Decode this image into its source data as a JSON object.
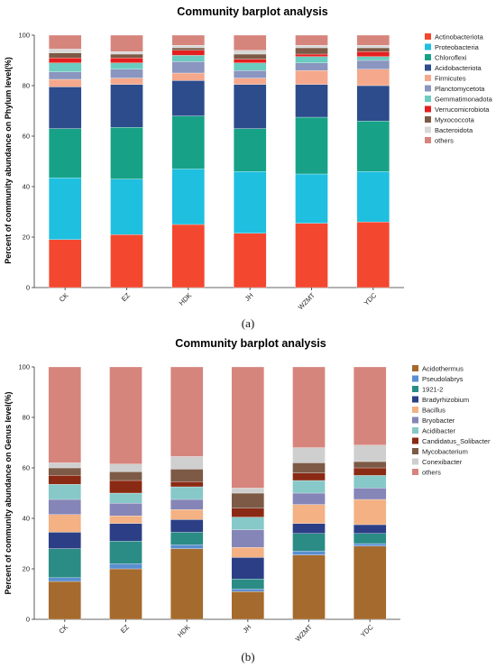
{
  "figure": {
    "caption_a": "(a)",
    "caption_b": "(b)"
  },
  "chart_data": [
    {
      "type": "bar",
      "stacked": true,
      "title": "Community barplot analysis",
      "ylabel": "Percent of community abundance on Phylum level(%)",
      "xlabel": "",
      "ylim": [
        0,
        100
      ],
      "yticks": [
        0,
        20,
        40,
        60,
        80,
        100
      ],
      "legend_position": "right",
      "categories": [
        "CK",
        "EZ",
        "HDK",
        "JH",
        "WZMT",
        "YDC"
      ],
      "series": [
        {
          "name": "Actinobacteriota",
          "color": "#f4472f",
          "values": [
            19,
            21,
            25,
            21.5,
            25.5,
            26
          ]
        },
        {
          "name": "Proteobacteria",
          "color": "#1fbfe0",
          "values": [
            24.5,
            22,
            22,
            24.5,
            19.5,
            20
          ]
        },
        {
          "name": "Chloroflexi",
          "color": "#17a287",
          "values": [
            19.5,
            20.5,
            21,
            17,
            22.5,
            20
          ]
        },
        {
          "name": "Acidobacteriota",
          "color": "#2c4c8c",
          "values": [
            16.5,
            17,
            14,
            17.5,
            13,
            14
          ]
        },
        {
          "name": "Firmicutes",
          "color": "#f5a88c",
          "values": [
            3,
            2.5,
            3,
            2.5,
            5.5,
            6.5
          ]
        },
        {
          "name": "Planctomycetota",
          "color": "#8a96bf",
          "values": [
            3,
            3.5,
            4.5,
            3,
            3,
            3.5
          ]
        },
        {
          "name": "Gemmatimonadota",
          "color": "#6ccbc0",
          "values": [
            3.5,
            2.5,
            2.5,
            3,
            2.5,
            1.5
          ]
        },
        {
          "name": "Verrucomicrobiota",
          "color": "#e51f1f",
          "values": [
            2,
            2,
            2,
            1.5,
            1,
            2
          ]
        },
        {
          "name": "Myxococcota",
          "color": "#7d5a46",
          "values": [
            2,
            1.5,
            1,
            2,
            2.5,
            1.5
          ]
        },
        {
          "name": "Bacteroidota",
          "color": "#d8d8d8",
          "values": [
            1.5,
            1,
            1,
            1.5,
            1,
            1
          ]
        },
        {
          "name": "others",
          "color": "#d6857d",
          "values": [
            5.5,
            6.5,
            4,
            6,
            4,
            4
          ]
        }
      ]
    },
    {
      "type": "bar",
      "stacked": true,
      "title": "Community barplot analysis",
      "ylabel": "Percent of community abundance on Genus level(%)",
      "xlabel": "",
      "ylim": [
        0,
        100
      ],
      "yticks": [
        0,
        20,
        40,
        60,
        80,
        100
      ],
      "legend_position": "right",
      "categories": [
        "CK",
        "EZ",
        "HDK",
        "JH",
        "WZMT",
        "YDC"
      ],
      "series": [
        {
          "name": "Acidothermus",
          "color": "#a56a2d",
          "values": [
            15,
            20,
            28,
            11,
            25.5,
            29
          ]
        },
        {
          "name": "Pseudolabrys",
          "color": "#5a8fd0",
          "values": [
            1.5,
            2,
            1.5,
            1,
            1.5,
            1
          ]
        },
        {
          "name": "1921-2",
          "color": "#2b8c86",
          "values": [
            11.5,
            9,
            5,
            4,
            7,
            4
          ]
        },
        {
          "name": "Bradyrhizobium",
          "color": "#2c3f86",
          "values": [
            6.5,
            7,
            5,
            8.5,
            4,
            3.5
          ]
        },
        {
          "name": "Bacillus",
          "color": "#f4b183",
          "values": [
            7,
            3,
            4,
            4,
            7.5,
            10
          ]
        },
        {
          "name": "Bryobacter",
          "color": "#8585b8",
          "values": [
            6,
            5,
            4,
            7,
            4.5,
            4.5
          ]
        },
        {
          "name": "Acidibacter",
          "color": "#87c8c8",
          "values": [
            6,
            4,
            5,
            5,
            5,
            5
          ]
        },
        {
          "name": "Candidatus_Solibacter",
          "color": "#8b2a14",
          "values": [
            3.5,
            5,
            2,
            3.5,
            3,
            3
          ]
        },
        {
          "name": "Mycobacterium",
          "color": "#7d5a46",
          "values": [
            3,
            3.5,
            5,
            6,
            4,
            2.5
          ]
        },
        {
          "name": "Conexibacter",
          "color": "#cfcfcf",
          "values": [
            2,
            3,
            5,
            2,
            6,
            6.5
          ]
        },
        {
          "name": "others",
          "color": "#d6857d",
          "values": [
            38,
            38.5,
            35.5,
            48,
            32,
            31
          ]
        }
      ]
    }
  ]
}
